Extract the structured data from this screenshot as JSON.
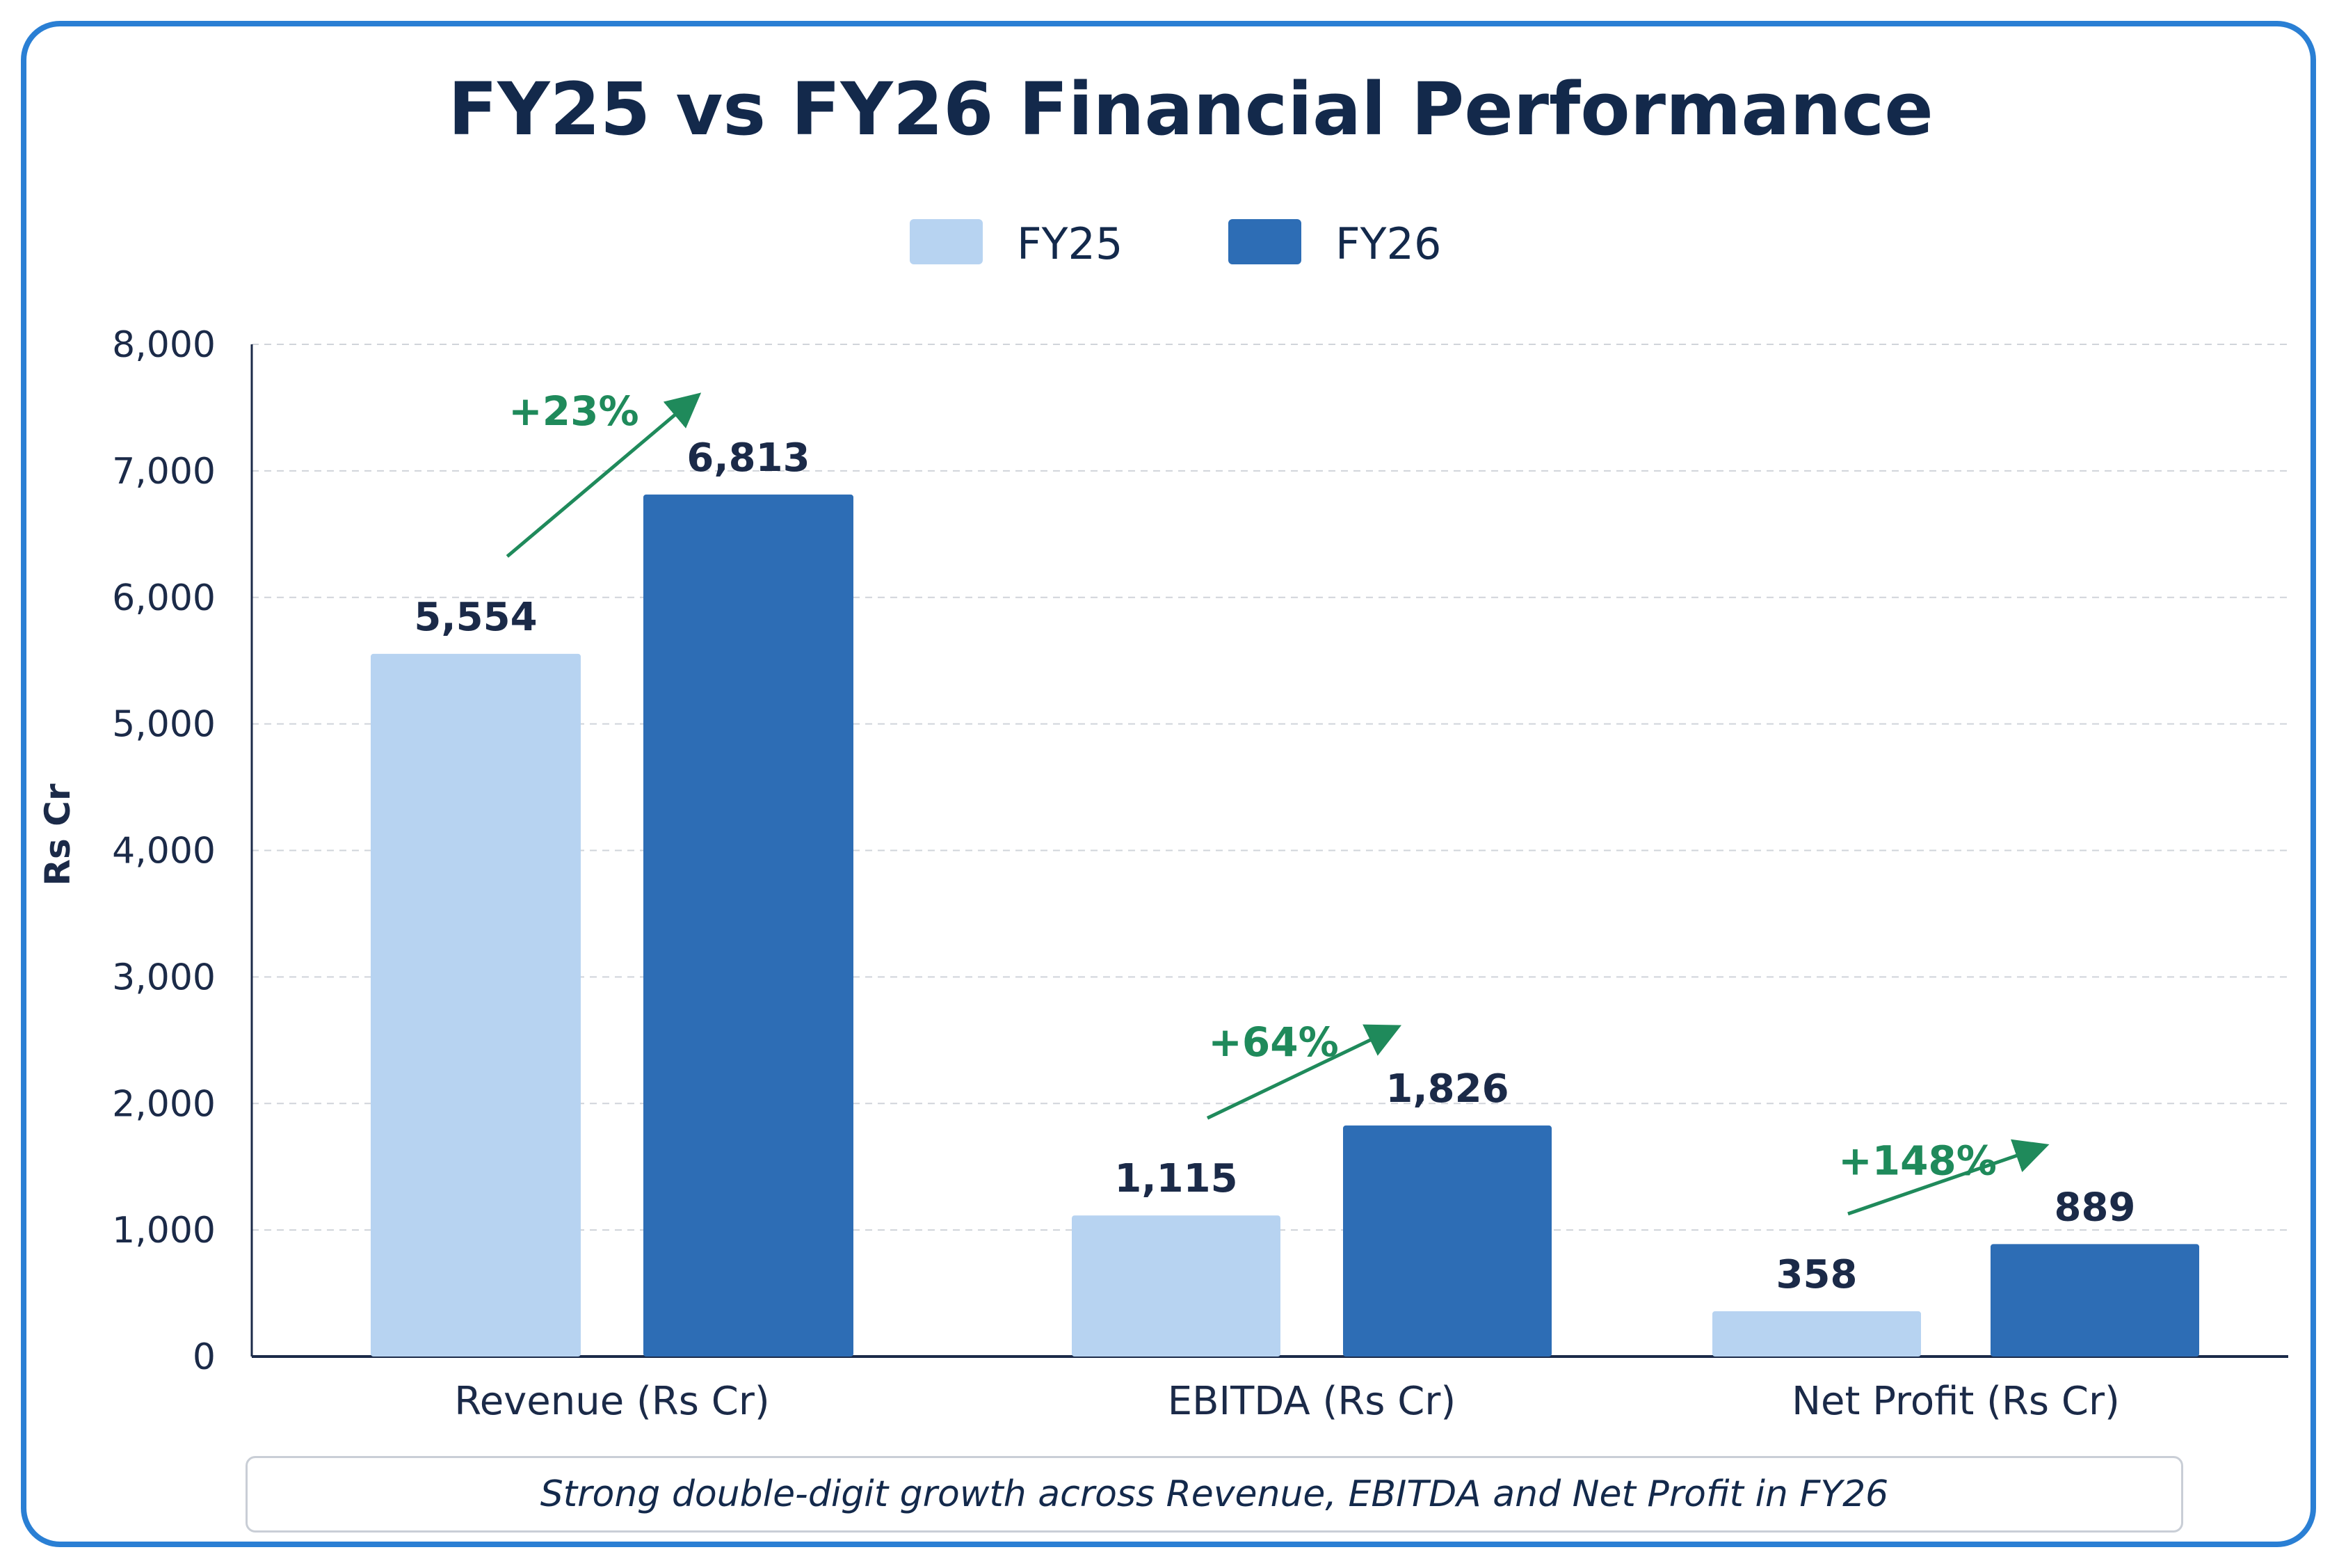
{
  "chart_data": {
    "type": "bar",
    "title": "FY25 vs FY26 Financial Performance",
    "ylabel": "Rs Cr",
    "ylim": [
      0,
      8000
    ],
    "yticks": [
      0,
      1000,
      2000,
      3000,
      4000,
      5000,
      6000,
      7000,
      8000
    ],
    "ytick_labels": [
      "0",
      "1,000",
      "2,000",
      "3,000",
      "4,000",
      "5,000",
      "6,000",
      "7,000",
      "8,000"
    ],
    "grid": true,
    "legend_position": "top-center",
    "categories": [
      "Revenue (Rs Cr)",
      "EBITDA (Rs Cr)",
      "Net Profit (Rs Cr)"
    ],
    "series": [
      {
        "name": "FY25",
        "color": "#b7d3f1",
        "values": [
          5554,
          1115,
          358
        ],
        "labels": [
          "5,554",
          "1,115",
          "358"
        ]
      },
      {
        "name": "FY26",
        "color": "#2d6db5",
        "values": [
          6813,
          1826,
          889
        ],
        "labels": [
          "6,813",
          "1,826",
          "889"
        ]
      }
    ],
    "annotations": [
      "+23%",
      "+64%",
      "+148%"
    ],
    "annotation_color": "#1f8a5b",
    "note": "Strong double-digit growth across Revenue, EBITDA and Net Profit in FY26"
  }
}
